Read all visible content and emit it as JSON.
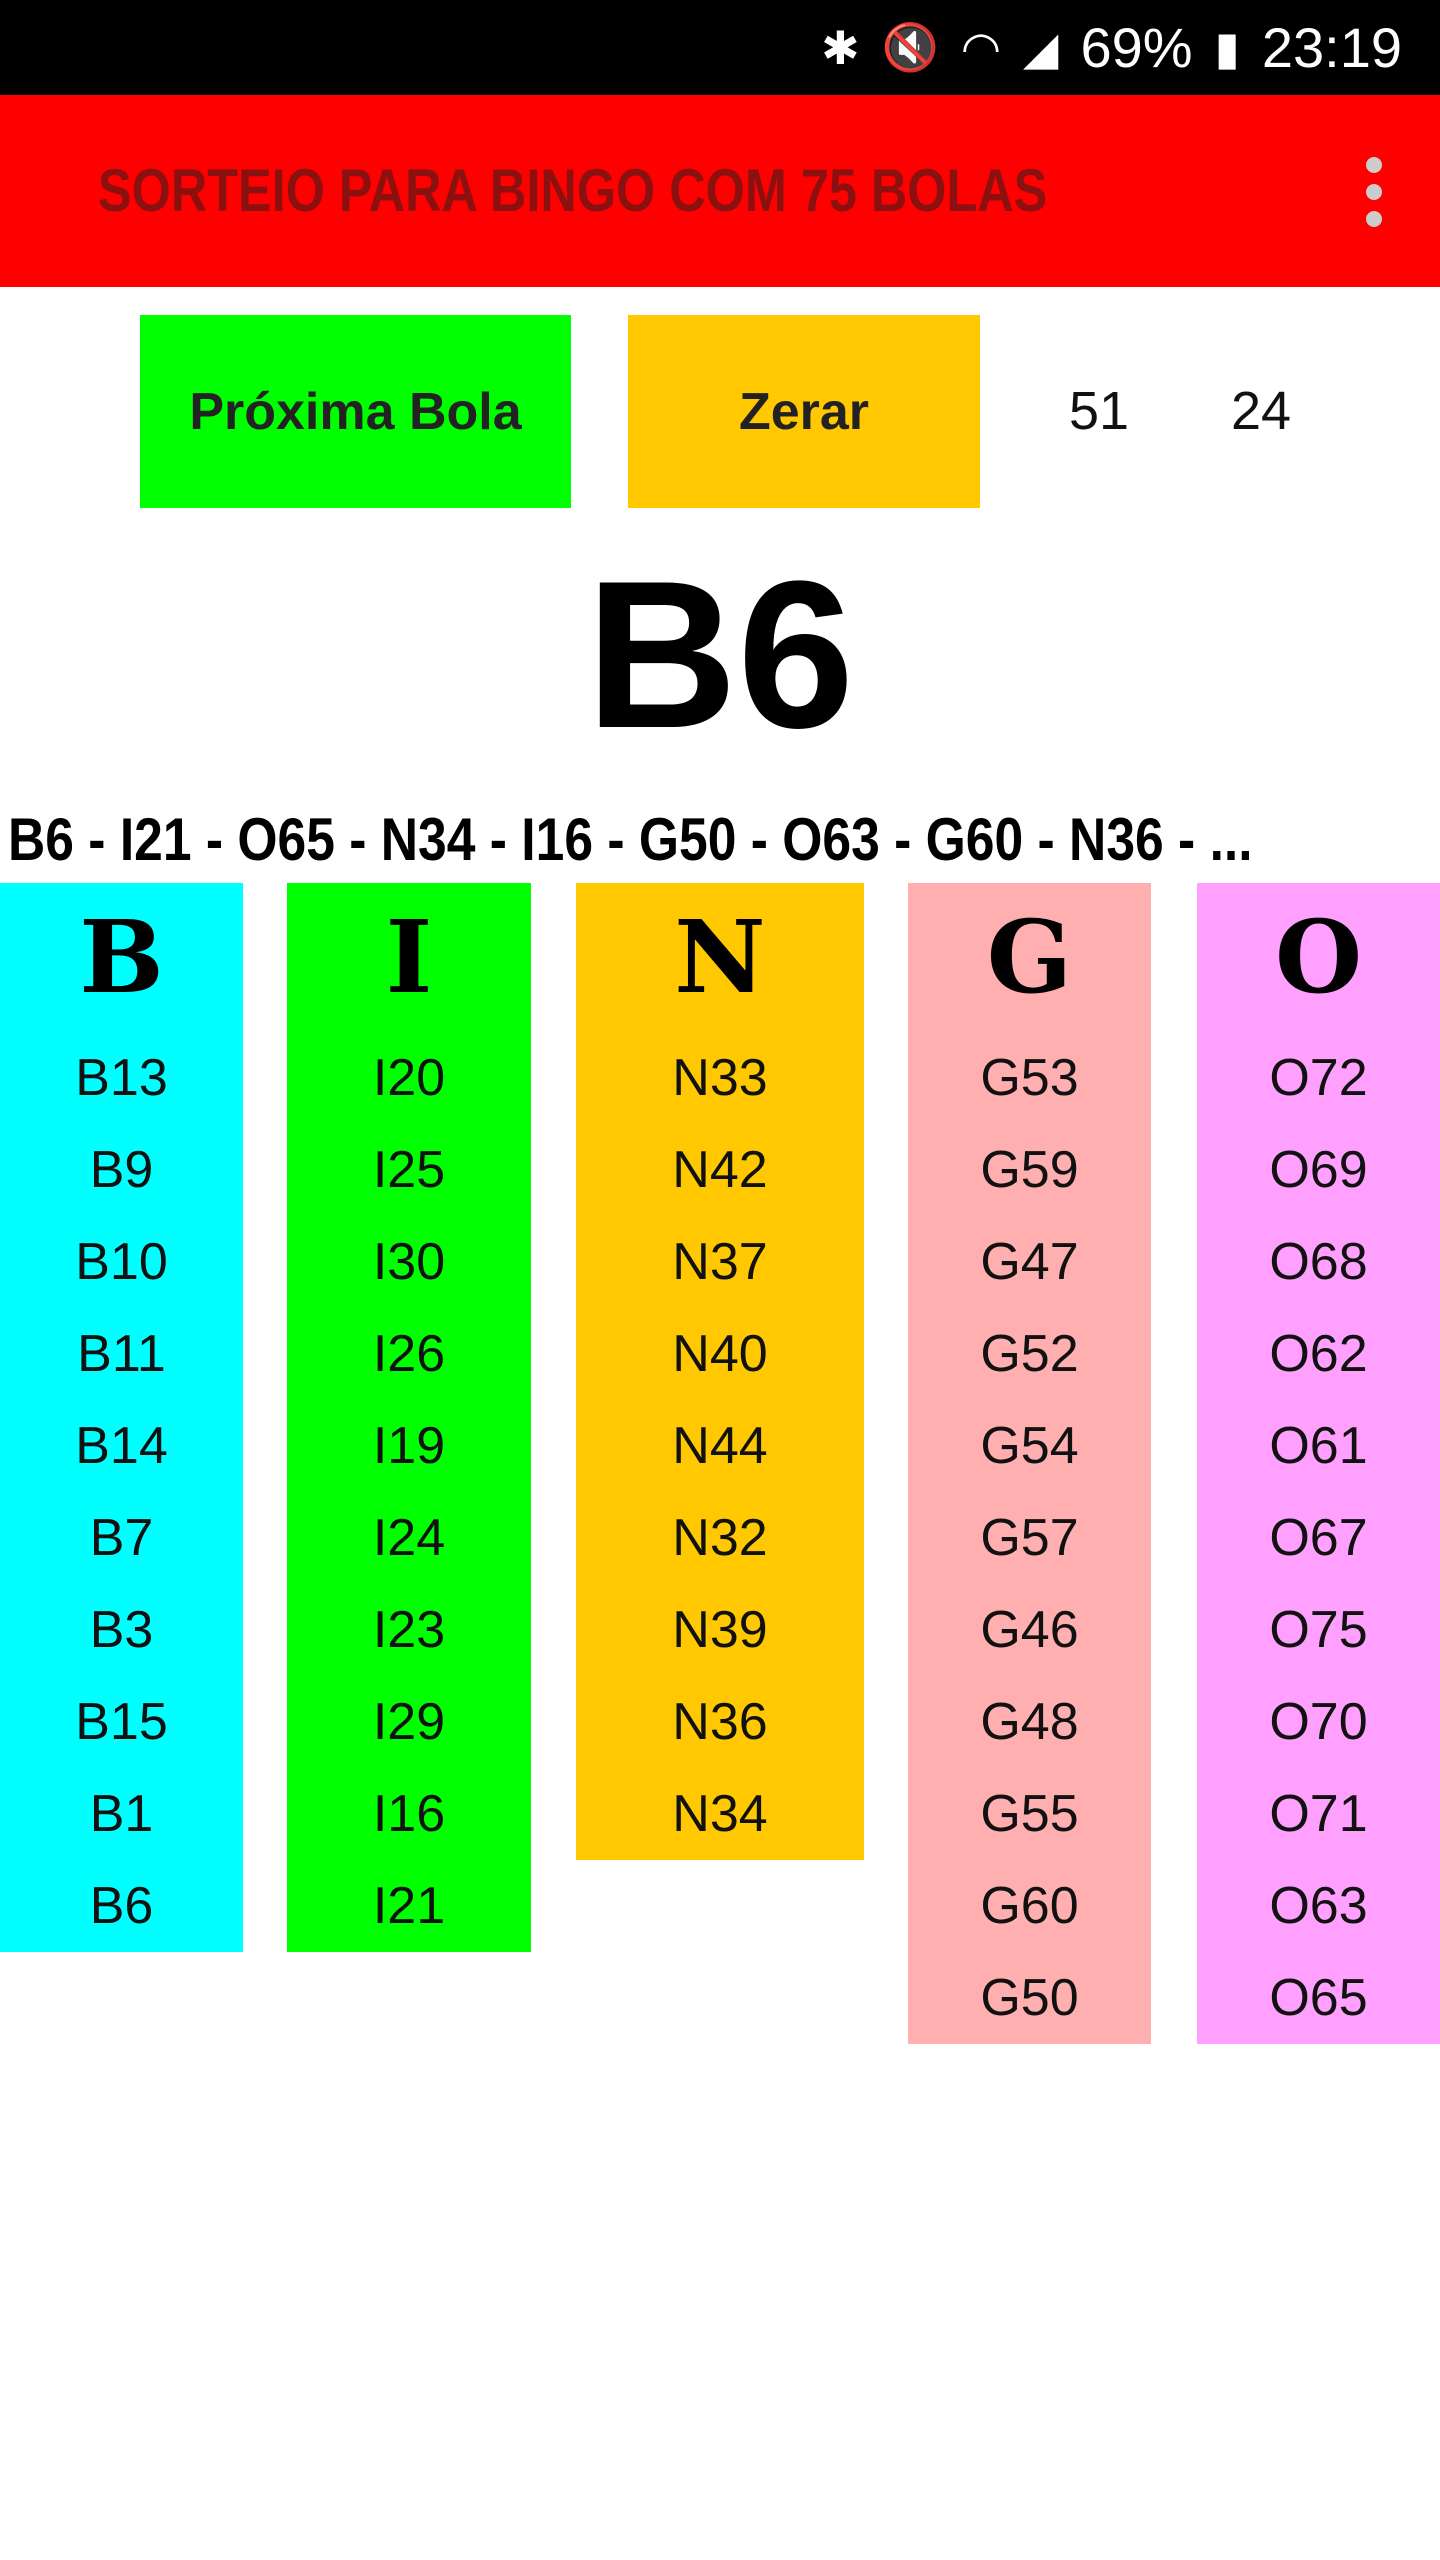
{
  "status_bar": {
    "icons": [
      "bluetooth-icon",
      "mute-vibrate-icon",
      "wifi-icon",
      "signal-icon",
      "battery-charging-icon"
    ],
    "battery": "69%",
    "time": "23:19"
  },
  "app_bar": {
    "title": "SORTEIO PARA BINGO COM 75 BOLAS",
    "background": "#ff0000"
  },
  "controls": {
    "next_label": "Próxima Bola",
    "reset_label": "Zerar",
    "drawn_count": "51",
    "remaining_count": "24"
  },
  "current_ball": "B6",
  "history": "B6 - I21 - O65 - N34 - I16 - G50 - O63 - G60 - N36 - ...",
  "columns": [
    {
      "letter": "B",
      "color": "#00ffff",
      "numbers": [
        "B13",
        "B9",
        "B10",
        "B11",
        "B14",
        "B7",
        "B3",
        "B15",
        "B1",
        "B6"
      ]
    },
    {
      "letter": "I",
      "color": "#00ff00",
      "numbers": [
        "I20",
        "I25",
        "I30",
        "I26",
        "I19",
        "I24",
        "I23",
        "I29",
        "I16",
        "I21"
      ]
    },
    {
      "letter": "N",
      "color": "#ffc800",
      "numbers": [
        "N33",
        "N42",
        "N37",
        "N40",
        "N44",
        "N32",
        "N39",
        "N36",
        "N34"
      ]
    },
    {
      "letter": "G",
      "color": "#ffafaf",
      "numbers": [
        "G53",
        "G59",
        "G47",
        "G52",
        "G54",
        "G57",
        "G46",
        "G48",
        "G55",
        "G60",
        "G50"
      ]
    },
    {
      "letter": "O",
      "color": "#ffa0ff",
      "numbers": [
        "O72",
        "O69",
        "O68",
        "O62",
        "O61",
        "O67",
        "O75",
        "O70",
        "O71",
        "O63",
        "O65"
      ]
    }
  ]
}
